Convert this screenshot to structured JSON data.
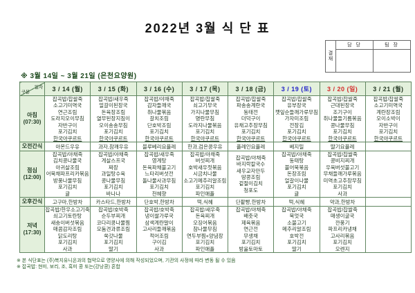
{
  "title": "2022년 3월 식 단 표",
  "approval": {
    "stamp_label": "결재",
    "columns": [
      "담 당",
      "팀 장"
    ]
  },
  "period_note": "※ 3월 14일 ~ 3월 21일 (은천요양원)",
  "colors": {
    "date_default": "#223622",
    "date_saturday": "#2323c8",
    "date_sunday": "#d42a2a",
    "header_bg": "#e3f0dc",
    "border": "#5f855f"
  },
  "table": {
    "corner": {
      "top_right": "일자",
      "bottom_left": "구분"
    },
    "dates": [
      {
        "label": "3 / 14 (월)",
        "color": "#223622"
      },
      {
        "label": "3 / 15 (화)",
        "color": "#223622"
      },
      {
        "label": "3 / 16 (수)",
        "color": "#223622"
      },
      {
        "label": "3 / 17 (목)",
        "color": "#223622"
      },
      {
        "label": "3 / 18 (금)",
        "color": "#223622"
      },
      {
        "label": "3 / 19 (토)",
        "color": "#2323c8"
      },
      {
        "label": "3 / 20 (일)",
        "color": "#d42a2a"
      },
      {
        "label": "3 / 21 (월)",
        "color": "#223622"
      }
    ],
    "rows": [
      {
        "label": "아침",
        "time": "(07:30)",
        "type": "meal",
        "cells": [
          [
            "잡곡밥/찹쌀죽",
            "소고기미역국",
            "연근조림",
            "도라지오이무침",
            "자반구이",
            "포기김치",
            "한국야쿠르트"
          ],
          [
            "잡곡밥/새우죽",
            "얼갈이된장국",
            "돈육장조림",
            "열무된장지짐이",
            "오이송송무침",
            "포기김치",
            "한국야쿠르트"
          ],
          [
            "잡곡밥/야채죽",
            "감자들깨국",
            "취나물볶음",
            "갈치조림",
            "단호박조림",
            "포기김치",
            "한국야쿠르트"
          ],
          [
            "잡곡밥/찹쌀죽",
            "쇠고기무국",
            "가지나물무침",
            "명란무침",
            "도라지나물볶음",
            "포기김치",
            "한국야쿠르트"
          ],
          [
            "잡곡밥/찹쌀죽",
            "파송송계란국",
            "동태전",
            "더덕구이",
            "유채고추장무침",
            "포기김치",
            "한국야쿠르트"
          ],
          [
            "잡곡밥/찹쌀죽",
            "유부장국",
            "깻잎순들깨가루무침",
            "가자미조림",
            "전장김",
            "포기김치",
            "한국야쿠르트"
          ],
          [
            "잡곡밥/찹쌀죽",
            "근대된장국",
            "조기구이",
            "취나물들기름볶음",
            "콩나물무침",
            "포기김치",
            "한국야쿠르트"
          ],
          [
            "잡곡밥/찹쌀죽",
            "소고기미역국",
            "계란장조림",
            "오이소박이",
            "자반구이",
            "포기김치",
            "한국야쿠르트"
          ]
        ]
      },
      {
        "label": "오전간식",
        "time": "",
        "type": "snack",
        "cells": [
          "아몬드우유",
          "과자,참깨우유",
          "블루베리요플레",
          "한과,검은콩우유",
          "플레인요플레",
          "베지밀",
          "딸기요플레",
          ""
        ]
      },
      {
        "label": "점심",
        "time": "(12:00)",
        "type": "meal",
        "cells": [
          [
            "잡곡밥/야채죽",
            "김치콩나물국",
            "아귀살조림",
            "어묵채파프리카볶음",
            "방풍나물무침",
            "포기김치",
            "귤"
          ],
          [
            "잡곡밥/야채죽",
            "게살스프국",
            "짜장",
            "과일탕수육",
            "콩나물무침",
            "포기김치",
            "바나나"
          ],
          [
            "잡곡밥/새우죽",
            "영계탕",
            "돈육파채불고기",
            "느타리버섯전",
            "돌나물사과무침",
            "포기김치",
            "천혜향"
          ],
          [
            "잡곡밥/야채죽",
            "버섯찌개",
            "호박새우젓볶음",
            "시금치나물",
            "소고기메추리알조림",
            "포기김치",
            "파인애플"
          ],
          [
            "잡곡밥/야채죽",
            "바지락칼국수",
            "새우교자만두",
            "땅콩조림",
            "겉절이김치",
            "청포도"
          ],
          [
            "잡곡밥/야채죽",
            "동태탕",
            "불어묵볶음",
            "돈장조림",
            "얼갈이나물",
            "포기김치",
            "귤"
          ],
          [
            "잡곡밥/찹쌀죽",
            "콩비지찌개",
            "우육버섯불고기",
            "무채들깨가루볶음",
            "미역초고추장무침",
            "포기김치",
            "사과"
          ],
          []
        ]
      },
      {
        "label": "오후간식",
        "time": "",
        "type": "snack",
        "cells": [
          "고구마,한방차",
          "카스타드,한방차",
          "단호박,한방차",
          "떡,식혜",
          "단팥빵,한방차",
          "떡,식혜",
          "약과,한방차",
          ""
        ]
      },
      {
        "label": "저녁",
        "time": "(17:30)",
        "type": "meal",
        "cells": [
          [
            "잡곡밥/한우소고기죽",
            "쇠고기토란탕",
            "새송이버섯볶음",
            "매콤감자조림",
            "닭도리탕",
            "포기김치",
            "사과"
          ],
          [
            "잡곡밥/호박죽",
            "순두부찌개",
            "코다리콩나물찜",
            "모둠견과류조림",
            "쑥갓나물",
            "포기김치",
            "딸기"
          ],
          [
            "잡곡밥/호박죽",
            "냉이쌀가루국",
            "삼색계란말이",
            "고사리들깨볶음",
            "적어조림",
            "구이김",
            "사과"
          ],
          [
            "잡곡밥/새우죽",
            "돈육찌개",
            "오징어볶음",
            "참나물무침",
            "연두부찜+양념장",
            "포기김치",
            "파인애플"
          ],
          [
            "잡곡밥/야채죽",
            "배춧국",
            "제육볶음",
            "연근전",
            "무생채",
            "포기김치",
            "방울토마토"
          ],
          [
            "잡곡밥/야채죽",
            "북엇국",
            "소불고기",
            "메추리알조림",
            "호박전",
            "포기김치",
            "딸기"
          ],
          [
            "잡곡밥/찹쌀죽",
            "매생이굴국",
            "깐풍기",
            "파프리카냉채",
            "고사리볶음",
            "포기김치",
            "오렌지"
          ],
          []
        ]
      }
    ]
  },
  "footnotes": [
    "※ 본 식단표는 (주)복지유니온과의 협약으로 영양사에 의해 작성되었으며, 기관의 사정에 따라 변동 될 수 있음",
    "※ 잡곡밥: 현미, 보리, 조, 흑미 콩 또는(강낭콩) 혼합"
  ],
  "underlined_item": "한국야쿠르트"
}
